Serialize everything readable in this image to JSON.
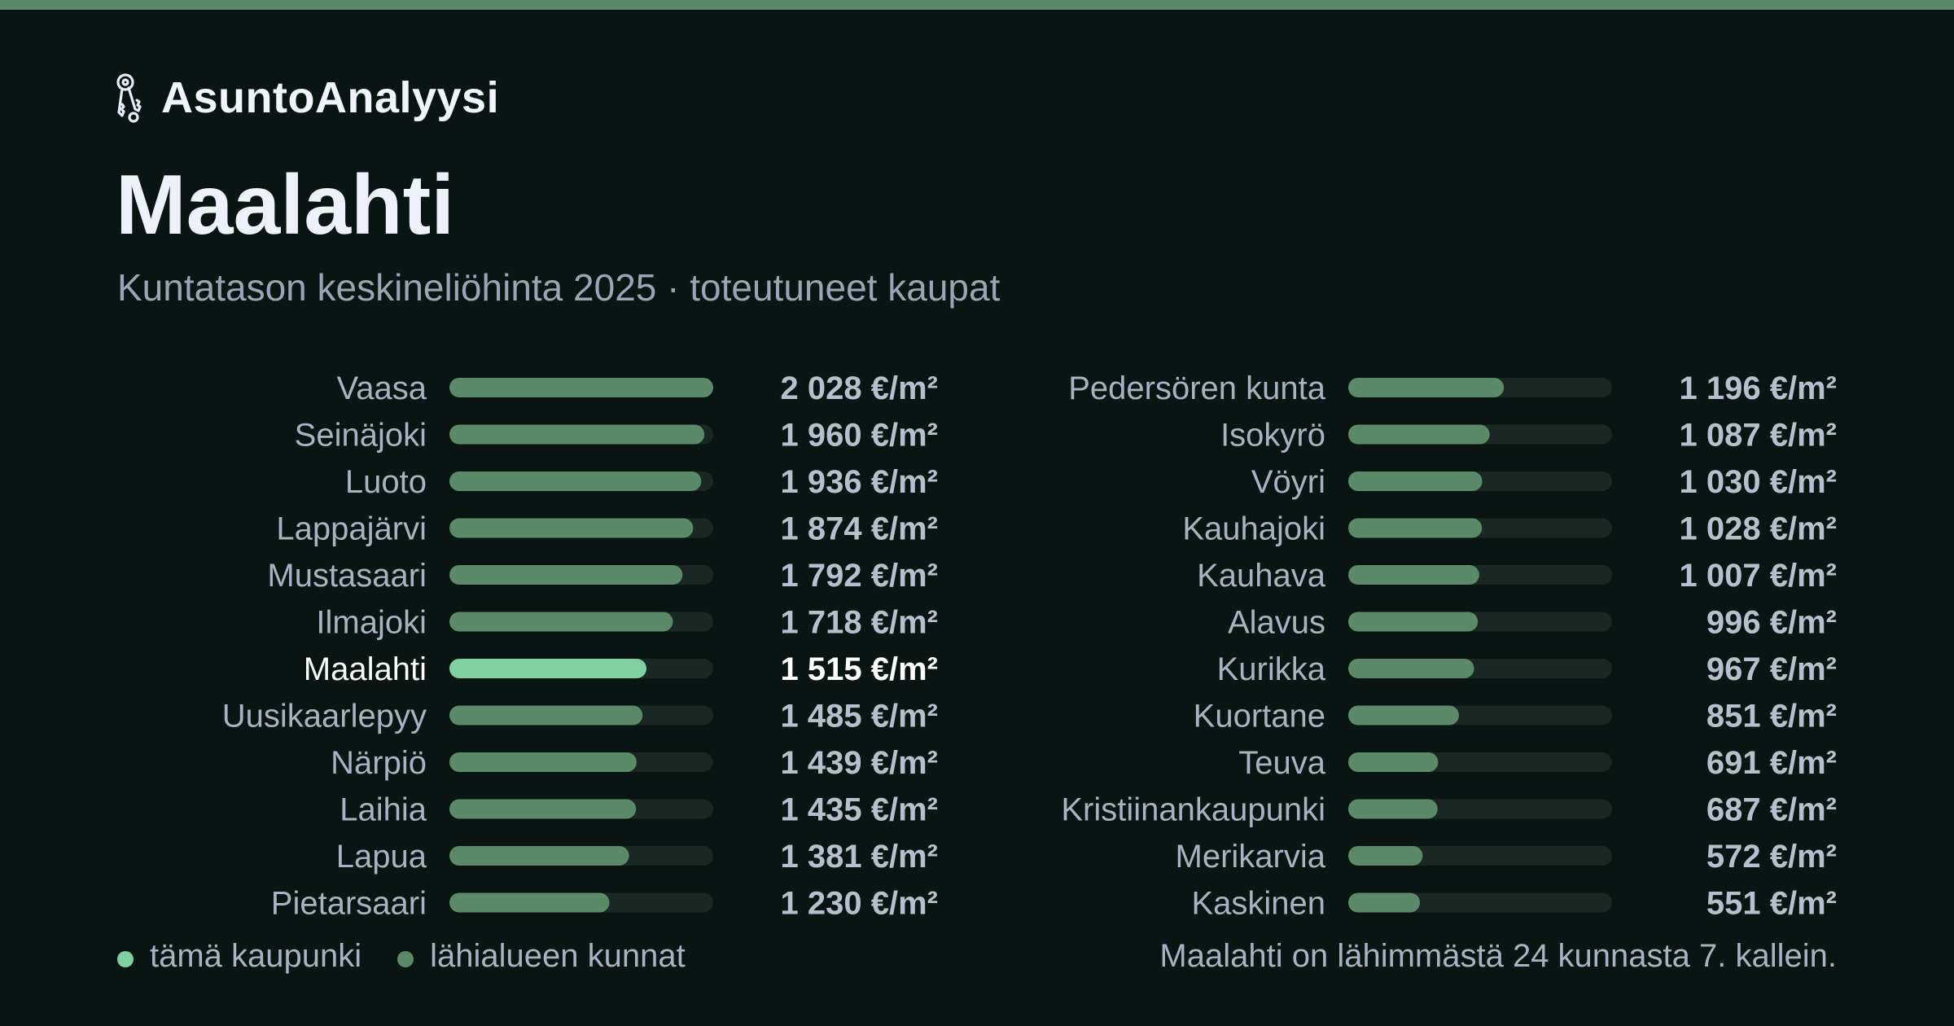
{
  "brand": {
    "name": "AsuntoAnalyysi",
    "icon": "keys-icon"
  },
  "page": {
    "title": "Maalahti",
    "subtitle": "Kuntatason keskineliöhinta 2025 · toteutuneet kaupat"
  },
  "colors": {
    "background": "#0a1412",
    "accent": "#5a8a68",
    "highlight_bar": "#7fd1a0",
    "neighbor_bar": "#5a8a68",
    "track": "#1b2723",
    "label": "#a8b2c2",
    "highlight_label": "#ffffff",
    "value": "#b6bfcd"
  },
  "chart_data": {
    "type": "bar",
    "orientation": "horizontal",
    "title": "",
    "xlabel": "",
    "ylabel": "",
    "unit": "€/m²",
    "xlim": [
      0,
      2028
    ],
    "highlight": "Maalahti",
    "columns": 2,
    "categories": [
      "Vaasa",
      "Seinäjoki",
      "Luoto",
      "Lappajärvi",
      "Mustasaari",
      "Ilmajoki",
      "Maalahti",
      "Uusikaarlepyy",
      "Närpiö",
      "Laihia",
      "Lapua",
      "Pietarsaari",
      "Pedersören kunta",
      "Isokyrö",
      "Vöyri",
      "Kauhajoki",
      "Kauhava",
      "Alavus",
      "Kurikka",
      "Kuortane",
      "Teuva",
      "Kristiinankaupunki",
      "Merikarvia",
      "Kaskinen"
    ],
    "values": [
      2028,
      1960,
      1936,
      1874,
      1792,
      1718,
      1515,
      1485,
      1439,
      1435,
      1381,
      1230,
      1196,
      1087,
      1030,
      1028,
      1007,
      996,
      967,
      851,
      691,
      687,
      572,
      551
    ],
    "value_labels": [
      "2 028 €/m²",
      "1 960 €/m²",
      "1 936 €/m²",
      "1 874 €/m²",
      "1 792 €/m²",
      "1 718 €/m²",
      "1 515 €/m²",
      "1 485 €/m²",
      "1 439 €/m²",
      "1 435 €/m²",
      "1 381 €/m²",
      "1 230 €/m²",
      "1 196 €/m²",
      "1 087 €/m²",
      "1 030 €/m²",
      "1 028 €/m²",
      "1 007 €/m²",
      "996 €/m²",
      "967 €/m²",
      "851 €/m²",
      "691 €/m²",
      "687 €/m²",
      "572 €/m²",
      "551 €/m²"
    ],
    "legend": [
      {
        "label": "tämä kaupunki",
        "color": "#7fd1a0"
      },
      {
        "label": "lähialueen kunnat",
        "color": "#5a8a68"
      }
    ],
    "legend_position": "bottom-left",
    "grid": false
  },
  "footnote": "Maalahti on lähimmästä 24 kunnasta 7. kallein."
}
